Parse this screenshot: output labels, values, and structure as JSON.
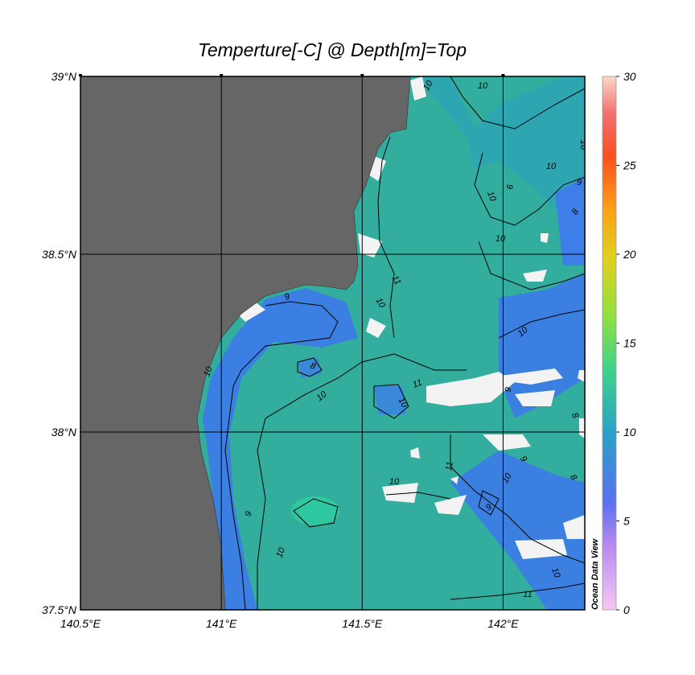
{
  "chart_data": {
    "type": "map",
    "title": "Temperture[-C] @ Depth[m]=Top",
    "xlim": [
      140.5,
      142.29
    ],
    "ylim": [
      37.5,
      39
    ],
    "xticks": [
      {
        "value": 140.5,
        "label": "140.5°E"
      },
      {
        "value": 141,
        "label": "141°E"
      },
      {
        "value": 141.5,
        "label": "141.5°E"
      },
      {
        "value": 142,
        "label": "142°E"
      }
    ],
    "yticks": [
      {
        "value": 37.5,
        "label": "37.5°N"
      },
      {
        "value": 38,
        "label": "38°N"
      },
      {
        "value": 38.5,
        "label": "38.5°N"
      },
      {
        "value": 39,
        "label": "39°N"
      }
    ],
    "grid": true,
    "colorbar": {
      "range": [
        0,
        30
      ],
      "ticks": [
        0,
        5,
        10,
        15,
        20,
        25,
        30
      ]
    },
    "watermark": "Ocean Data View",
    "contour_labels": [
      10,
      10,
      10,
      10,
      10,
      9,
      8,
      9,
      9,
      8,
      10,
      10,
      11,
      10,
      10,
      11,
      10,
      10,
      9,
      8,
      9,
      10,
      11,
      9,
      10,
      9,
      8,
      10,
      10,
      11
    ]
  }
}
